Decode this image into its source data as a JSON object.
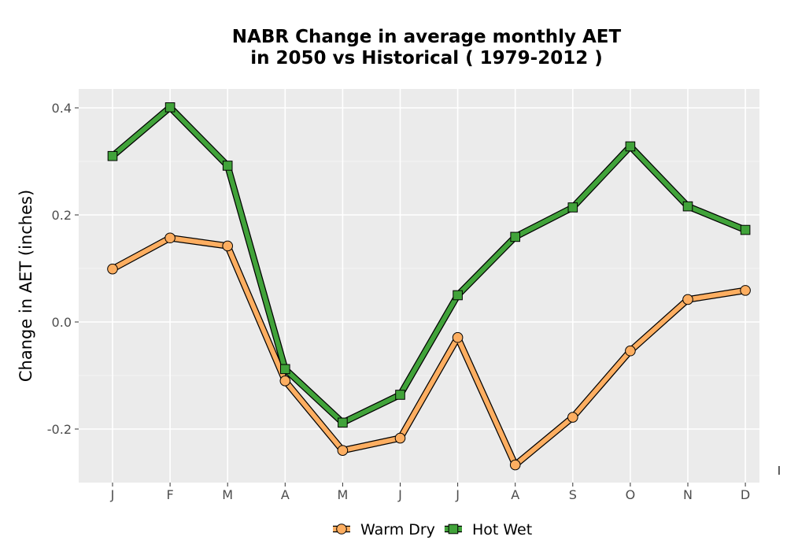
{
  "chart_data": {
    "type": "line",
    "title": [
      "NABR  Change in average monthly AET",
      "in 2050 vs Historical ( 1979-2012 )"
    ],
    "xlabel": "",
    "ylabel": "Change in AET (inches)",
    "categories": [
      "J",
      "F",
      "M",
      "A",
      "M",
      "J",
      "J",
      "A",
      "S",
      "O",
      "N",
      "D"
    ],
    "ylim": [
      -0.3,
      0.4
    ],
    "yticks": [
      -0.2,
      0.0,
      0.2,
      0.4
    ],
    "ytick_labels": [
      "-0.2",
      "0.0",
      "0.2",
      "0.4"
    ],
    "grid": true,
    "legend_position": "bottom",
    "stray_label": "l",
    "series": [
      {
        "name": "Warm Dry",
        "marker": "circle",
        "color": "#fdae61",
        "values": [
          0.099,
          0.157,
          0.142,
          -0.11,
          -0.24,
          -0.217,
          -0.029,
          -0.267,
          -0.178,
          -0.054,
          0.042,
          0.059
        ]
      },
      {
        "name": "Hot Wet",
        "marker": "square",
        "color": "#41a33a",
        "values": [
          0.31,
          0.401,
          0.292,
          -0.088,
          -0.188,
          -0.136,
          0.05,
          0.159,
          0.214,
          0.328,
          0.216,
          0.172
        ]
      }
    ]
  }
}
